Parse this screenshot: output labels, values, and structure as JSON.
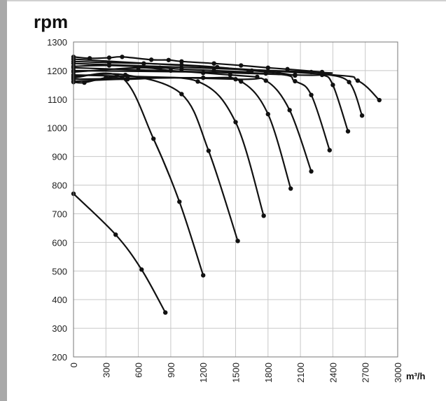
{
  "chart_data": {
    "type": "line",
    "ylabel": "rpm",
    "xlabel": "m³/h",
    "xlim": [
      0,
      3000
    ],
    "ylim": [
      200,
      1300
    ],
    "x_ticks": [
      0,
      300,
      600,
      900,
      1200,
      1500,
      1800,
      2100,
      2400,
      2700,
      3000
    ],
    "y_ticks": [
      200,
      300,
      400,
      500,
      600,
      700,
      800,
      900,
      1000,
      1100,
      1200,
      1300
    ],
    "grid": true,
    "series_color": "#111111",
    "series": [
      {
        "x": [
          0,
          390,
          630,
          850
        ],
        "y": [
          770,
          627,
          505,
          355
        ]
      },
      {
        "x": [
          0,
          450,
          740,
          980,
          1200
        ],
        "y": [
          1175,
          1175,
          962,
          742,
          485
        ]
      },
      {
        "x": [
          0,
          480,
          1000,
          1250,
          1520
        ],
        "y": [
          1180,
          1185,
          1118,
          920,
          605
        ]
      },
      {
        "x": [
          0,
          500,
          1150,
          1500,
          1760
        ],
        "y": [
          1162,
          1170,
          1162,
          1020,
          693
        ]
      },
      {
        "x": [
          0,
          1200,
          1550,
          1800,
          2010
        ],
        "y": [
          1170,
          1175,
          1162,
          1048,
          788
        ]
      },
      {
        "x": [
          0,
          1500,
          1780,
          2000,
          2200
        ],
        "y": [
          1185,
          1170,
          1165,
          1062,
          848
        ]
      },
      {
        "x": [
          0,
          1780,
          2050,
          2200,
          2370
        ],
        "y": [
          1200,
          1190,
          1163,
          1115,
          922
        ]
      },
      {
        "x": [
          0,
          2050,
          2300,
          2400,
          2540
        ],
        "y": [
          1210,
          1185,
          1185,
          1150,
          988
        ]
      },
      {
        "x": [
          0,
          2200,
          2320,
          2550,
          2670
        ],
        "y": [
          1225,
          1195,
          1188,
          1160,
          1043
        ]
      },
      {
        "x": [
          0,
          2300,
          2630,
          2830
        ],
        "y": [
          1240,
          1188,
          1165,
          1097
        ]
      },
      {
        "x": [
          0,
          150,
          330,
          450,
          720,
          880,
          1000,
          1300,
          1550,
          1800,
          1980,
          2300
        ],
        "y": [
          1248,
          1243,
          1245,
          1248,
          1238,
          1237,
          1232,
          1225,
          1218,
          1210,
          1205,
          1195
        ]
      },
      {
        "x": [
          0,
          330,
          650,
          1000,
          1330,
          1650,
          1900,
          2050
        ],
        "y": [
          1232,
          1228,
          1225,
          1220,
          1212,
          1200,
          1192,
          1183
        ]
      },
      {
        "x": [
          0,
          330,
          800,
          1000,
          1300,
          1620
        ],
        "y": [
          1215,
          1218,
          1210,
          1205,
          1200,
          1195
        ]
      },
      {
        "x": [
          0,
          600,
          900,
          1200,
          1450,
          1700
        ],
        "y": [
          1195,
          1210,
          1200,
          1192,
          1185,
          1178
        ]
      },
      {
        "x": [
          0,
          100,
          300,
          500
        ],
        "y": [
          1160,
          1158,
          1175,
          1180
        ]
      }
    ]
  }
}
